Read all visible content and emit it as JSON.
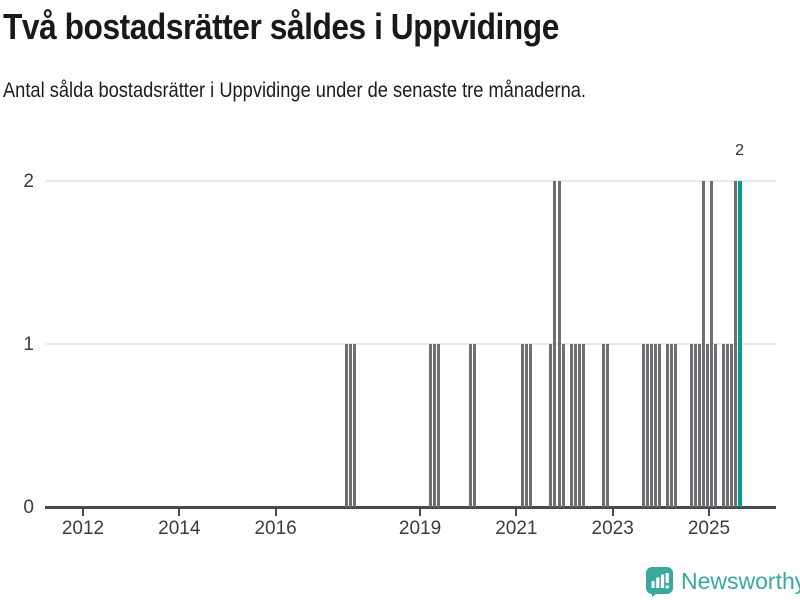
{
  "header": {
    "title": "Två bostadsrätter såldes i Uppvidinge",
    "subtitle": "Antal sålda bostadsrätter i Uppvidinge under de senaste tre månaderna."
  },
  "footer": {
    "brand": "Newsworthy",
    "brand_color": "#3ba89d"
  },
  "chart_data": {
    "type": "bar",
    "title": "Två bostadsrätter såldes i Uppvidinge",
    "subtitle": "Antal sålda bostadsrätter i Uppvidinge under de senaste tre månaderna.",
    "ylabel": "",
    "xlabel": "",
    "ylim": [
      0,
      2
    ],
    "y_ticks": [
      0,
      1,
      2
    ],
    "x_tick_years": [
      2012,
      2014,
      2016,
      2019,
      2021,
      2023,
      2025
    ],
    "x_range_months": [
      "2011-04",
      "2025-10"
    ],
    "grid": true,
    "bar_color": "#6f6f73",
    "highlight_color": "#009e94",
    "annotation": {
      "label": "2",
      "month": "2025-08"
    },
    "note": "monthly counts; months not listed are zero",
    "series": [
      {
        "month": "2017-06",
        "value": 1
      },
      {
        "month": "2017-07",
        "value": 1
      },
      {
        "month": "2017-08",
        "value": 1
      },
      {
        "month": "2019-03",
        "value": 1
      },
      {
        "month": "2019-04",
        "value": 1
      },
      {
        "month": "2019-05",
        "value": 1
      },
      {
        "month": "2020-01",
        "value": 1
      },
      {
        "month": "2020-02",
        "value": 1
      },
      {
        "month": "2021-02",
        "value": 1
      },
      {
        "month": "2021-03",
        "value": 1
      },
      {
        "month": "2021-04",
        "value": 1
      },
      {
        "month": "2021-09",
        "value": 1
      },
      {
        "month": "2021-10",
        "value": 2
      },
      {
        "month": "2021-11",
        "value": 2
      },
      {
        "month": "2021-12",
        "value": 1
      },
      {
        "month": "2022-02",
        "value": 1
      },
      {
        "month": "2022-03",
        "value": 1
      },
      {
        "month": "2022-04",
        "value": 1
      },
      {
        "month": "2022-05",
        "value": 1
      },
      {
        "month": "2022-10",
        "value": 1
      },
      {
        "month": "2022-11",
        "value": 1
      },
      {
        "month": "2023-08",
        "value": 1
      },
      {
        "month": "2023-09",
        "value": 1
      },
      {
        "month": "2023-10",
        "value": 1
      },
      {
        "month": "2023-11",
        "value": 1
      },
      {
        "month": "2023-12",
        "value": 1
      },
      {
        "month": "2024-02",
        "value": 1
      },
      {
        "month": "2024-03",
        "value": 1
      },
      {
        "month": "2024-04",
        "value": 1
      },
      {
        "month": "2024-08",
        "value": 1
      },
      {
        "month": "2024-09",
        "value": 1
      },
      {
        "month": "2024-10",
        "value": 1
      },
      {
        "month": "2024-11",
        "value": 2
      },
      {
        "month": "2024-12",
        "value": 1
      },
      {
        "month": "2025-01",
        "value": 2
      },
      {
        "month": "2025-02",
        "value": 1
      },
      {
        "month": "2025-04",
        "value": 1
      },
      {
        "month": "2025-05",
        "value": 1
      },
      {
        "month": "2025-06",
        "value": 1
      },
      {
        "month": "2025-07",
        "value": 2
      },
      {
        "month": "2025-08",
        "value": 2,
        "current": true
      }
    ]
  }
}
